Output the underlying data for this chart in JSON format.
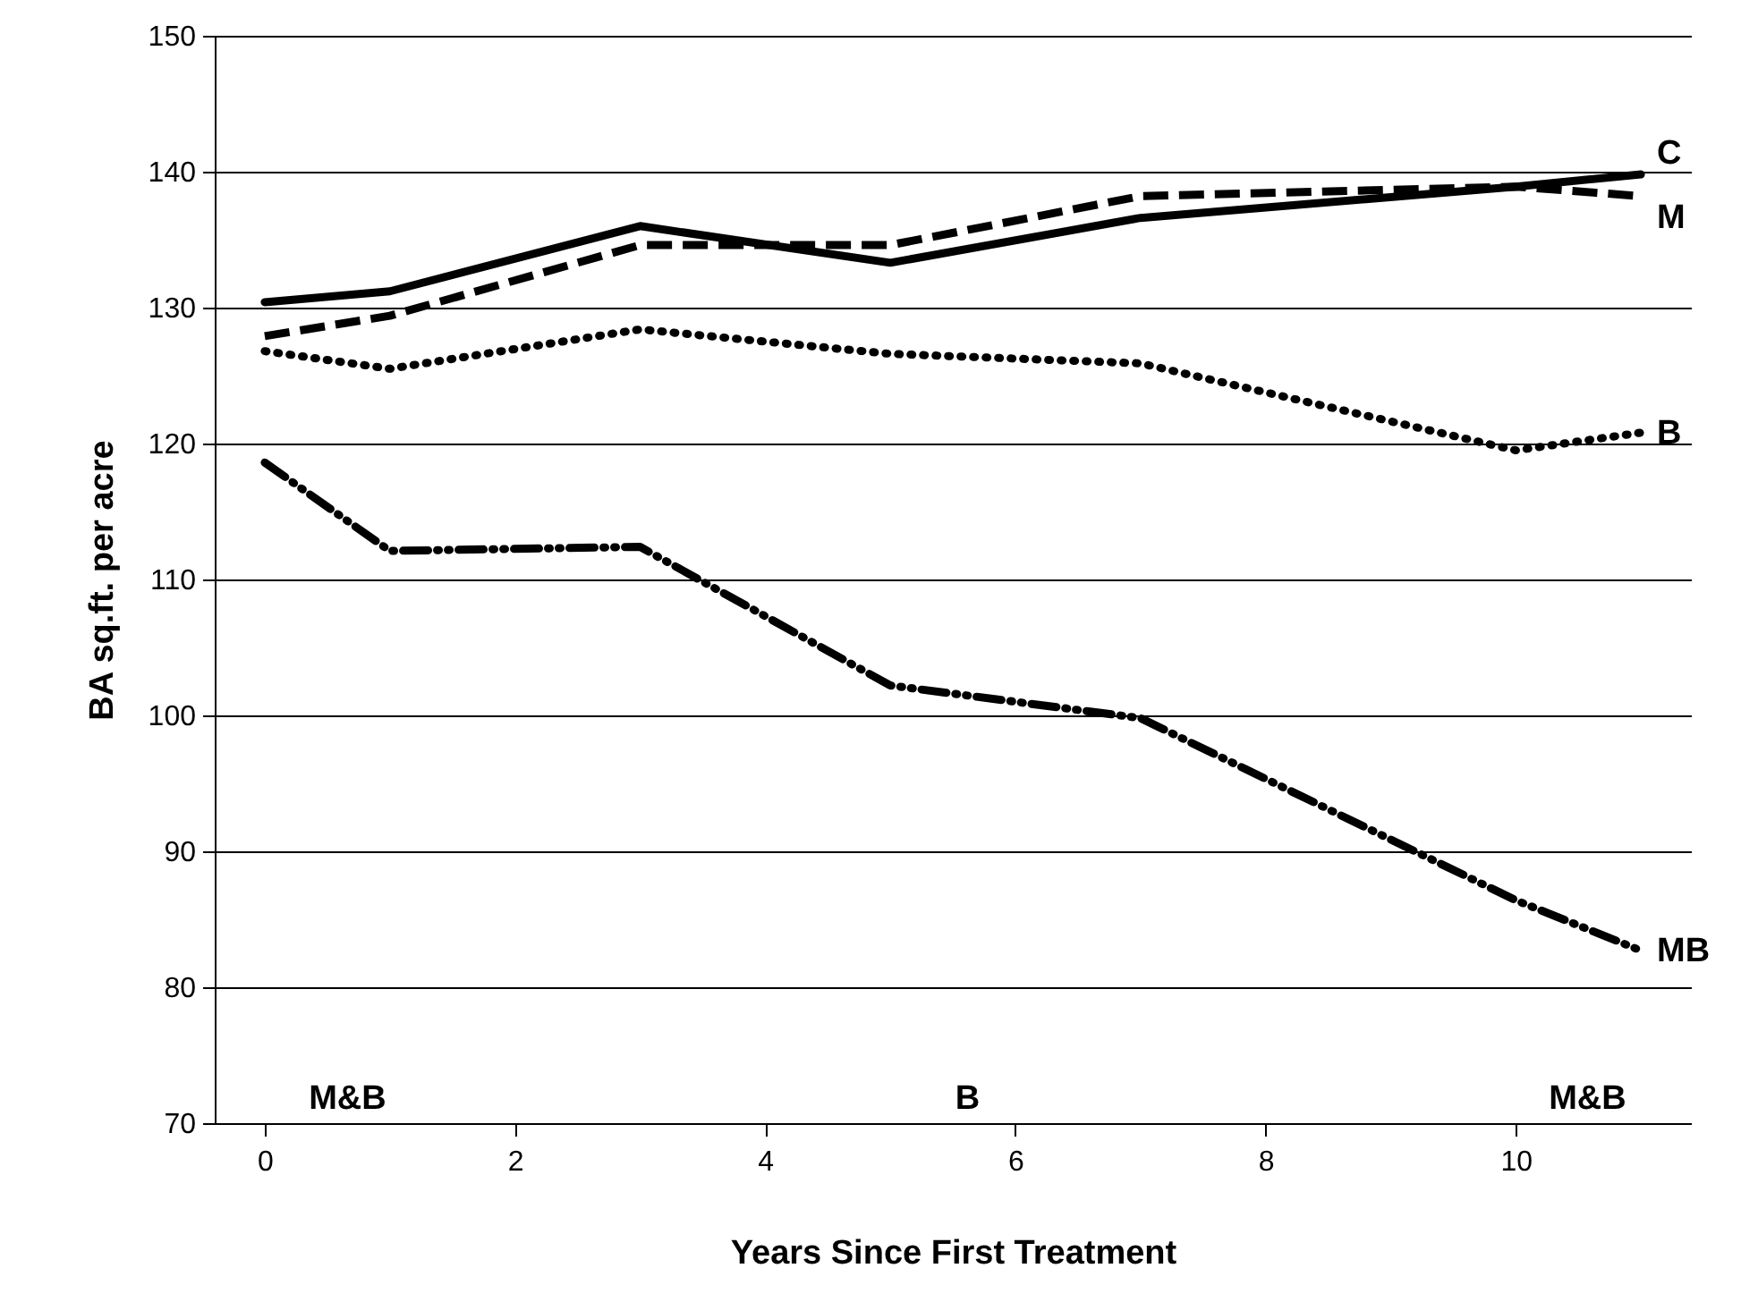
{
  "chart_data": {
    "type": "line",
    "xlabel": "Years Since First Treatment",
    "ylabel": "BA sq.ft. per acre",
    "xlim": [
      -0.4,
      11.4
    ],
    "xticks": [
      0,
      2,
      4,
      6,
      8,
      10
    ],
    "ylim": [
      70,
      150
    ],
    "yticks": [
      70,
      80,
      90,
      100,
      110,
      120,
      130,
      140,
      150
    ],
    "grid": "y",
    "x": [
      0,
      1,
      3,
      5,
      7,
      10,
      11
    ],
    "series": [
      {
        "name": "C",
        "color": "#000000",
        "line_style": "solid",
        "values": [
          130.4,
          131.2,
          136.0,
          133.3,
          136.6,
          138.9,
          139.8
        ]
      },
      {
        "name": "M",
        "color": "#000000",
        "line_style": "dashed",
        "values": [
          127.9,
          129.4,
          134.6,
          134.6,
          138.2,
          138.9,
          138.2
        ]
      },
      {
        "name": "B",
        "color": "#000000",
        "line_style": "dotted",
        "values": [
          126.8,
          125.5,
          128.4,
          126.6,
          125.9,
          119.5,
          120.8
        ]
      },
      {
        "name": "MB",
        "color": "#000000",
        "line_style": "dashdot",
        "values": [
          118.6,
          112.1,
          112.4,
          102.2,
          99.8,
          86.4,
          82.7
        ]
      }
    ],
    "annotations": [
      "M&B",
      "B",
      "M&B"
    ]
  }
}
